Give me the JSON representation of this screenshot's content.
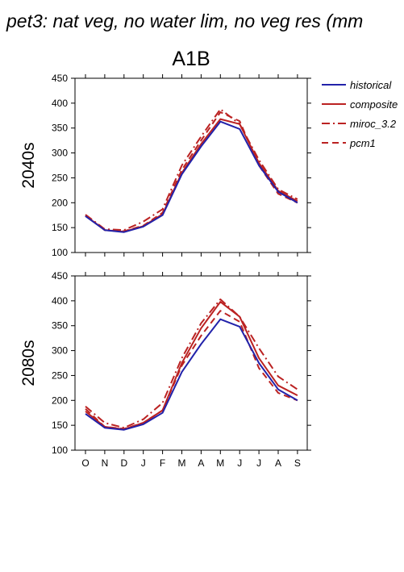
{
  "title": "pet3: nat veg, no water lim, no veg res (mm",
  "scenario": "A1B",
  "legend": [
    {
      "name": "historical",
      "color": "#2222aa",
      "dash": "solid"
    },
    {
      "name": "composite",
      "color": "#bb2222",
      "dash": "solid"
    },
    {
      "name": "miroc_3.2",
      "color": "#bb2222",
      "dash": "dashdot"
    },
    {
      "name": "pcm1",
      "color": "#bb2222",
      "dash": "dashed"
    }
  ],
  "chart_data": [
    {
      "type": "line",
      "ylabel": "2040s",
      "categories": [
        "O",
        "N",
        "D",
        "J",
        "F",
        "M",
        "A",
        "M",
        "J",
        "J",
        "A",
        "S"
      ],
      "ylim": [
        100,
        450
      ],
      "yticks": [
        100,
        150,
        200,
        250,
        300,
        350,
        400,
        450
      ],
      "series": [
        {
          "name": "historical",
          "values": [
            173,
            145,
            141,
            152,
            175,
            257,
            313,
            363,
            348,
            275,
            222,
            200
          ]
        },
        {
          "name": "composite",
          "values": [
            174,
            145,
            142,
            153,
            177,
            260,
            318,
            368,
            358,
            280,
            224,
            203
          ]
        },
        {
          "name": "miroc_3.2",
          "values": [
            176,
            147,
            145,
            162,
            187,
            275,
            333,
            388,
            358,
            286,
            227,
            207
          ]
        },
        {
          "name": "pcm1",
          "values": [
            174,
            145,
            143,
            154,
            180,
            266,
            325,
            382,
            364,
            275,
            218,
            200
          ]
        }
      ]
    },
    {
      "type": "line",
      "ylabel": "2080s",
      "categories": [
        "O",
        "N",
        "D",
        "J",
        "F",
        "M",
        "A",
        "M",
        "J",
        "J",
        "A",
        "S"
      ],
      "ylim": [
        100,
        450
      ],
      "yticks": [
        100,
        150,
        200,
        250,
        300,
        350,
        400,
        450
      ],
      "series": [
        {
          "name": "historical",
          "values": [
            173,
            145,
            141,
            152,
            175,
            257,
            313,
            363,
            348,
            275,
            222,
            200
          ]
        },
        {
          "name": "composite",
          "values": [
            178,
            147,
            142,
            155,
            180,
            275,
            345,
            398,
            368,
            285,
            230,
            210
          ]
        },
        {
          "name": "miroc_3.2",
          "values": [
            188,
            155,
            145,
            162,
            195,
            285,
            355,
            403,
            368,
            305,
            248,
            222
          ]
        },
        {
          "name": "pcm1",
          "values": [
            183,
            147,
            143,
            155,
            180,
            270,
            330,
            380,
            358,
            265,
            215,
            200
          ]
        }
      ]
    }
  ]
}
